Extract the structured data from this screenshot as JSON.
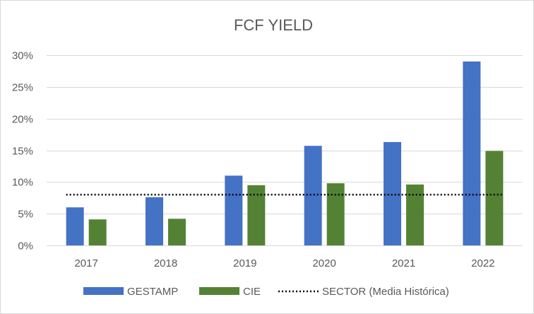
{
  "chart_data": {
    "type": "bar",
    "title": "FCF YIELD",
    "categories": [
      "2017",
      "2018",
      "2019",
      "2020",
      "2021",
      "2022"
    ],
    "series": [
      {
        "name": "GESTAMP",
        "type": "bar",
        "color": "#4472C4",
        "values": [
          6.0,
          7.6,
          11.0,
          15.7,
          16.3,
          29.0
        ]
      },
      {
        "name": "CIE",
        "type": "bar",
        "color": "#548235",
        "values": [
          4.1,
          4.2,
          9.5,
          9.8,
          9.6,
          14.9
        ]
      },
      {
        "name": "SECTOR (Media Histórica)",
        "type": "line",
        "style": "dotted",
        "color": "#000000",
        "values": [
          8.0,
          8.0,
          8.0,
          8.0,
          8.0,
          8.0
        ]
      }
    ],
    "ylim": [
      0,
      30
    ],
    "yticks": [
      0,
      5,
      10,
      15,
      20,
      25,
      30
    ],
    "ytick_labels": [
      "0%",
      "5%",
      "10%",
      "15%",
      "20%",
      "25%",
      "30%"
    ],
    "grid": true,
    "legend_position": "bottom"
  }
}
